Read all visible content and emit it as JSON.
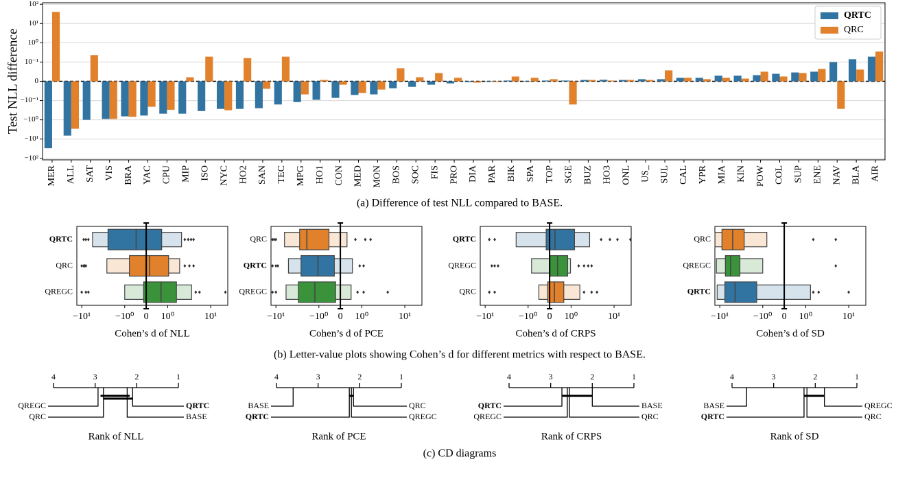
{
  "highlight": "QRTC",
  "captions": [
    "(a) Difference of test NLL compared to BASE.",
    "(b) Letter-value plots showing Cohen’s d for different metrics with respect to BASE.",
    "(c) CD diagrams"
  ],
  "chart_data": [
    {
      "type": "bar",
      "ylabel": "Test NLL difference",
      "yscale": "symlog",
      "linthresh": 0.1,
      "linscale": 1,
      "grid": true,
      "zeroline": true,
      "legend": "upper right",
      "categories": [
        "MER",
        "ALL",
        "SAT",
        "VIS",
        "BRA",
        "YAC",
        "CPU",
        "MIP",
        "ISO",
        "NYC",
        "HO2",
        "SAN",
        "TEC",
        "MPG",
        "HO1",
        "CON",
        "MED",
        "MON",
        "BOS",
        "SOC",
        "FIS",
        "PRO",
        "DIA",
        "PAR",
        "BIK",
        "SPA",
        "TOP",
        "SGE",
        "BUZ",
        "HO3",
        "ONL",
        "US_",
        "SUL",
        "CAL",
        "YPR",
        "MIA",
        "KIN",
        "POW",
        "COL",
        "SUP",
        "ENE",
        "NAV",
        "BLA",
        "AIR"
      ],
      "series": [
        {
          "name": "QRTC",
          "color": "#3274a1",
          "values": [
            -30,
            -6.6,
            -1.0,
            -0.9,
            -0.66,
            -0.6,
            -0.48,
            -0.48,
            -0.35,
            -0.27,
            -0.27,
            -0.25,
            -0.16,
            -0.12,
            -0.096,
            -0.086,
            -0.071,
            -0.068,
            -0.036,
            -0.029,
            -0.018,
            -0.011,
            -0.004,
            -0.002,
            0.004,
            0.002,
            0.004,
            0.004,
            0.007,
            0.008,
            0.007,
            0.011,
            0.011,
            0.018,
            0.018,
            0.029,
            0.029,
            0.032,
            0.039,
            0.046,
            0.05,
            0.1,
            0.14,
            0.19
          ]
        },
        {
          "name": "QRC",
          "color": "#e1812c",
          "values": [
            40,
            -2.9,
            0.23,
            -0.9,
            -0.7,
            -0.21,
            -0.3,
            0.021,
            0.19,
            -0.32,
            0.16,
            -0.039,
            0.19,
            -0.068,
            0.007,
            -0.018,
            -0.061,
            -0.043,
            0.068,
            0.021,
            0.043,
            0.018,
            -0.007,
            -0.003,
            0.025,
            0.018,
            0.011,
            -0.16,
            0.007,
            0.004,
            0.007,
            0.007,
            0.057,
            0.018,
            0.011,
            0.018,
            0.014,
            0.05,
            0.025,
            0.043,
            0.064,
            -0.27,
            0.061,
            0.35
          ]
        }
      ],
      "ylim": [
        -120,
        120
      ],
      "yticks": [
        {
          "value": -100,
          "label": "−10²"
        },
        {
          "value": -10,
          "label": "−10¹"
        },
        {
          "value": -1,
          "label": "−10⁰"
        },
        {
          "value": -0.1,
          "label": "−10⁻¹"
        },
        0,
        {
          "value": 0.1,
          "label": "10⁻¹"
        },
        {
          "value": 1,
          "label": "10⁰"
        },
        {
          "value": 10,
          "label": "10¹"
        },
        {
          "value": 100,
          "label": "10²"
        }
      ]
    },
    {
      "type": "boxen",
      "xlabel": "Cohen’s d of NLL",
      "xscale": "symlog",
      "linthresh": 1,
      "linscale": 0.5,
      "xlim": [
        -13,
        25
      ],
      "xticks": [
        {
          "value": -10,
          "label": "−10¹"
        },
        {
          "value": -1,
          "label": "−10⁰"
        },
        0,
        {
          "value": 1,
          "label": "10⁰"
        },
        {
          "value": 10,
          "label": "10¹"
        }
      ],
      "series": [
        {
          "name": "QRTC",
          "color": "#3274a1",
          "median": -0.47,
          "boxes": [
            [
              -2.45,
              0.72
            ],
            [
              -5.6,
              2.1
            ]
          ],
          "outliers": [
            -9,
            -8,
            -7,
            2.5,
            3,
            3.5,
            4
          ]
        },
        {
          "name": "QRC",
          "color": "#e1812c",
          "median": 0.16,
          "boxes": [
            [
              -0.78,
              1.05
            ],
            [
              -2.6,
              1.9
            ]
          ],
          "outliers": [
            -10,
            -9,
            -8.5,
            -8,
            2.5,
            3.2,
            4
          ]
        },
        {
          "name": "QREGC",
          "color": "#3a923a",
          "median": 0.69,
          "boxes": [
            [
              -0.12,
              1.6
            ],
            [
              -1.0,
              3.6
            ]
          ],
          "outliers": [
            -10,
            -8,
            -7,
            4.5,
            5.5,
            22
          ]
        }
      ]
    },
    {
      "type": "boxen",
      "xlabel": "Cohen’s d of PCE",
      "xscale": "symlog",
      "linthresh": 1,
      "linscale": 0.5,
      "xlim": [
        -13,
        25
      ],
      "xticks": [
        {
          "value": -10,
          "label": "−10¹"
        },
        {
          "value": -1,
          "label": "−10⁰"
        },
        0,
        {
          "value": 1,
          "label": "10⁰"
        },
        {
          "value": 10,
          "label": "10¹"
        }
      ],
      "series": [
        {
          "name": "QRC",
          "color": "#e1812c",
          "median": -1.9,
          "boxes": [
            [
              -2.8,
              -0.53
            ],
            [
              -6.3,
              0.31
            ]
          ],
          "outliers": [
            -12,
            -11,
            -10,
            0.7,
            1.2,
            1.6
          ]
        },
        {
          "name": "QRTC",
          "color": "#3274a1",
          "median": -1.05,
          "boxes": [
            [
              -2.6,
              -0.28
            ],
            [
              -5.1,
              0.56
            ]
          ],
          "outliers": [
            -12,
            -10,
            -9,
            0.9,
            1.1
          ]
        },
        {
          "name": "QREGC",
          "color": "#3a923a",
          "median": -1.24,
          "boxes": [
            [
              -3,
              -0.22
            ],
            [
              -5.8,
              0.5
            ]
          ],
          "outliers": [
            -12,
            -10,
            0.8,
            1.1,
            4
          ]
        }
      ]
    },
    {
      "type": "boxen",
      "xlabel": "Cohen’s d of CRPS",
      "xscale": "symlog",
      "linthresh": 1,
      "linscale": 0.5,
      "xlim": [
        -13,
        25
      ],
      "xticks": [
        {
          "value": -10,
          "label": "−10¹"
        },
        {
          "value": -1,
          "label": "−10⁰"
        },
        0,
        {
          "value": 1,
          "label": "10⁰"
        },
        {
          "value": 10,
          "label": "10¹"
        }
      ],
      "series": [
        {
          "name": "QRTC",
          "color": "#3274a1",
          "median": 0.25,
          "boxes": [
            [
              -0.16,
              1.2
            ],
            [
              -1.9,
              2.7
            ]
          ],
          "outliers": [
            -8,
            -6,
            5,
            8,
            12,
            24
          ]
        },
        {
          "name": "QREGC",
          "color": "#3a923a",
          "median": 0.37,
          "boxes": [
            [
              0.02,
              0.84
            ],
            [
              -0.84,
              0.97
            ]
          ],
          "outliers": [
            -7,
            -6,
            -5,
            1.5,
            2,
            2.5,
            3
          ]
        },
        {
          "name": "QRC",
          "color": "#e1812c",
          "median": 0.22,
          "boxes": [
            [
              -0.09,
              0.66
            ],
            [
              -0.5,
              1.6
            ]
          ],
          "outliers": [
            -8,
            -6,
            2,
            3,
            4
          ]
        }
      ]
    },
    {
      "type": "boxen",
      "xlabel": "Cohen’s d of SD",
      "xscale": "symlog",
      "linthresh": 1,
      "linscale": 0.5,
      "xlim": [
        -13,
        25
      ],
      "xticks": [
        {
          "value": -10,
          "label": "−10¹"
        },
        {
          "value": -1,
          "label": "−10⁰"
        },
        0,
        {
          "value": 1,
          "label": "10⁰"
        },
        {
          "value": 10,
          "label": "10¹"
        }
      ],
      "series": [
        {
          "name": "QRC",
          "color": "#e1812c",
          "median": -5,
          "boxes": [
            [
              -8.9,
              -2.7
            ],
            [
              -12.9,
              -0.81
            ]
          ],
          "outliers": [
            1.5,
            5
          ]
        },
        {
          "name": "QREGC",
          "color": "#3a923a",
          "median": -5.6,
          "boxes": [
            [
              -7.4,
              -3.4
            ],
            [
              -12,
              -1.0
            ]
          ],
          "outliers": [
            5
          ]
        },
        {
          "name": "QRTC",
          "color": "#3274a1",
          "median": -4.4,
          "boxes": [
            [
              -7.6,
              -1.38
            ],
            [
              -11.5,
              1.29
            ]
          ],
          "outliers": [
            1.5,
            2,
            10
          ]
        }
      ]
    },
    {
      "type": "cd",
      "xlabel": "Rank of NLL",
      "xlim": [
        4,
        1
      ],
      "xticks": [
        4,
        3,
        2,
        1
      ],
      "methods": [
        {
          "name": "QREGC",
          "rank": 2.93
        },
        {
          "name": "QRC",
          "rank": 2.8
        },
        {
          "name": "QRTC",
          "rank": 2.1
        },
        {
          "name": "BASE",
          "rank": 2.23
        }
      ],
      "cliques": [
        [
          2.87,
          2.17
        ],
        [
          2.8,
          2.1
        ]
      ]
    },
    {
      "type": "cd",
      "xlabel": "Rank of PCE",
      "xlim": [
        4,
        1
      ],
      "xticks": [
        4,
        3,
        2,
        1
      ],
      "methods": [
        {
          "name": "BASE",
          "rank": 3.6
        },
        {
          "name": "QRTC",
          "rank": 2.25
        },
        {
          "name": "QRC",
          "rank": 2.15
        },
        {
          "name": "QREGC",
          "rank": 2.2
        }
      ],
      "cliques": [
        [
          2.25,
          2.15
        ]
      ]
    },
    {
      "type": "cd",
      "xlabel": "Rank of CRPS",
      "xlim": [
        4,
        1
      ],
      "xticks": [
        4,
        3,
        2,
        1
      ],
      "methods": [
        {
          "name": "QRTC",
          "rank": 2.73
        },
        {
          "name": "QREGC",
          "rank": 2.6
        },
        {
          "name": "BASE",
          "rank": 2.0
        },
        {
          "name": "QRC",
          "rank": 2.55
        }
      ],
      "cliques": [
        [
          2.73,
          2.0
        ]
      ]
    },
    {
      "type": "cd",
      "xlabel": "Rank of SD",
      "xlim": [
        4,
        1
      ],
      "xticks": [
        4,
        3,
        2,
        1
      ],
      "methods": [
        {
          "name": "BASE",
          "rank": 3.65
        },
        {
          "name": "QRTC",
          "rank": 2.27
        },
        {
          "name": "QREGC",
          "rank": 1.78
        },
        {
          "name": "QRC",
          "rank": 2.2
        }
      ],
      "cliques": [
        [
          2.27,
          1.78
        ]
      ]
    }
  ]
}
